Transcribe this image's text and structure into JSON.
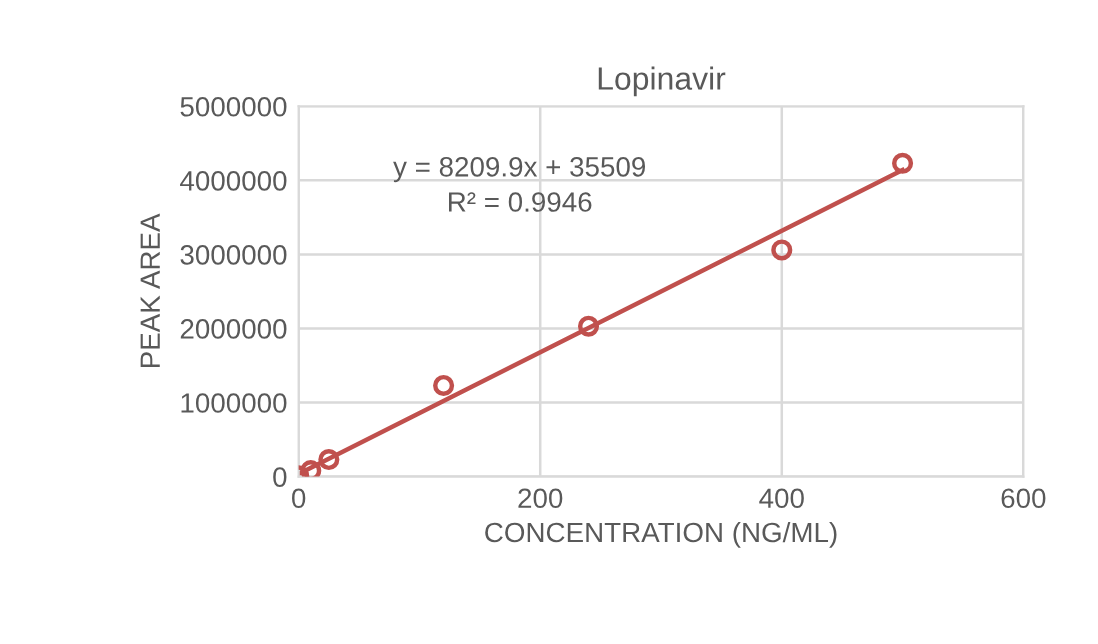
{
  "chart_data": {
    "type": "scatter",
    "title": "Lopinavir",
    "xlabel": "CONCENTRATION (NG/ML)",
    "ylabel": "PEAK AREA",
    "xlim": [
      0,
      600
    ],
    "xticks": [
      0,
      200,
      400,
      600
    ],
    "ylim": [
      0,
      5000000
    ],
    "yticks": [
      0,
      1000000,
      2000000,
      3000000,
      4000000,
      5000000
    ],
    "grid": true,
    "marker": "circle",
    "series": [
      {
        "color": "#c0504d",
        "x": [
          0,
          10,
          25,
          120,
          240,
          400,
          500
        ],
        "values": [
          10000,
          80000,
          230000,
          1230000,
          2030000,
          3060000,
          4230000
        ]
      },
      {
        "type": "line",
        "color": "#c0504d",
        "x": [
          0,
          500
        ],
        "values": [
          36000,
          4140000
        ],
        "marker": "none",
        "line_style": "solid"
      }
    ],
    "annotations": [
      "y = 8209.9x + 35509",
      "R² = 0.9946"
    ]
  }
}
